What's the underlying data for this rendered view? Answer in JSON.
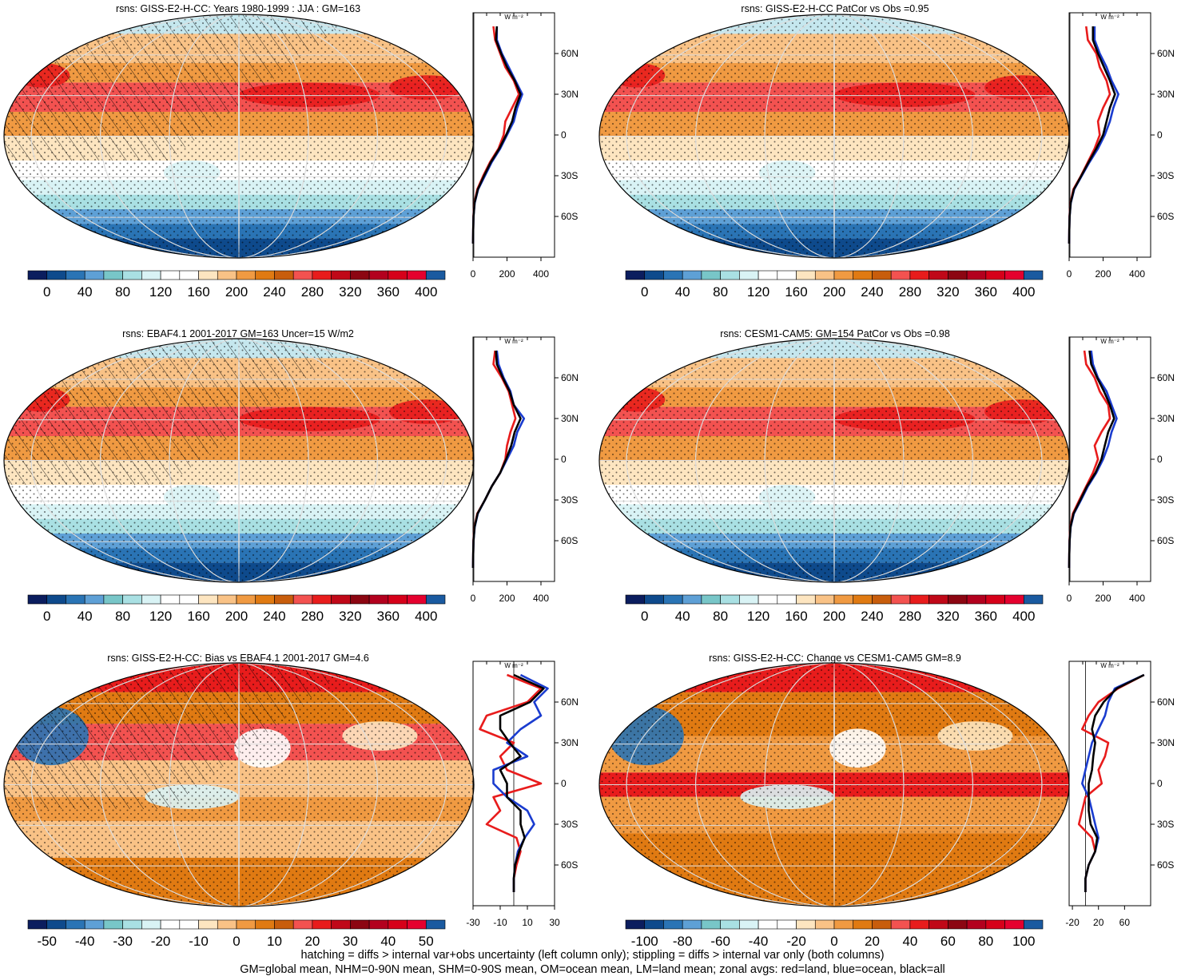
{
  "colorbar_colors": [
    "#0b1d5e",
    "#0e4a8c",
    "#2a74b5",
    "#5ea0d6",
    "#78c6c8",
    "#a9e0e3",
    "#d9f3f5",
    "#ffffff",
    "#ffffff",
    "#fde5c0",
    "#f9c286",
    "#f09a42",
    "#e07a12",
    "#c85d0c",
    "#f35250",
    "#e81c1c",
    "#c00818",
    "#8c0612",
    "#b3001e",
    "#d6001a",
    "#e5002e",
    "#1a5aa0"
  ],
  "panels": [
    {
      "id": "p1",
      "title": "rsns: GISS-E2-H-CC: Years 1980-1999 : JJA : GM=163",
      "colorbar_labels": [
        "0",
        "40",
        "80",
        "120",
        "160",
        "200",
        "240",
        "280",
        "320",
        "360",
        "400"
      ],
      "profile": {
        "xticks": [
          "0",
          "200",
          "400"
        ],
        "xrange": [
          0,
          480
        ],
        "unit": "W m⁻²",
        "lat_labels": [
          "60N",
          "30N",
          "0",
          "30S",
          "60S"
        ]
      },
      "chart_data": {
        "type": "line",
        "title": "rsns: GISS-E2-H-CC: Years 1980-1999 : JJA : GM=163",
        "lat": [
          80,
          70,
          60,
          50,
          40,
          30,
          20,
          10,
          0,
          -10,
          -20,
          -30,
          -40,
          -50,
          -60,
          -70,
          -80
        ],
        "series": [
          {
            "name": "red",
            "color": "#e81c1c",
            "values": [
              120,
              130,
              160,
              190,
              240,
              270,
              230,
              190,
              180,
              150,
              100,
              60,
              25,
              8,
              2,
              1,
              0
            ]
          },
          {
            "name": "blue",
            "color": "#1a3ccf",
            "values": [
              140,
              140,
              170,
              210,
              250,
              290,
              260,
              240,
              200,
              160,
              110,
              70,
              30,
              10,
              3,
              1,
              0
            ]
          },
          {
            "name": "black",
            "color": "#000000",
            "values": [
              140,
              135,
              165,
              200,
              245,
              280,
              250,
              230,
              195,
              155,
              105,
              65,
              28,
              9,
              3,
              1,
              0
            ]
          }
        ]
      }
    },
    {
      "id": "p2",
      "title": "rsns: GISS-E2-H-CC PatCor vs Obs =0.95",
      "colorbar_labels": [
        "0",
        "40",
        "80",
        "120",
        "160",
        "200",
        "240",
        "280",
        "320",
        "360",
        "400"
      ],
      "profile": {
        "xticks": [
          "0",
          "200",
          "400"
        ],
        "xrange": [
          0,
          480
        ],
        "unit": "W m⁻²",
        "lat_labels": [
          "60N",
          "30N",
          "0",
          "30S",
          "60S"
        ]
      },
      "chart_data": {
        "type": "line",
        "title": "rsns: GISS-E2-H-CC PatCor vs Obs =0.95",
        "lat": [
          80,
          70,
          60,
          50,
          40,
          30,
          20,
          10,
          0,
          -10,
          -20,
          -30,
          -40,
          -50,
          -60,
          -70,
          -80
        ],
        "series": [
          {
            "name": "red",
            "color": "#e81c1c",
            "values": [
              100,
              110,
              160,
              180,
              220,
              240,
              200,
              170,
              180,
              150,
              110,
              70,
              25,
              8,
              2,
              1,
              0
            ]
          },
          {
            "name": "blue",
            "color": "#1a3ccf",
            "values": [
              150,
              150,
              180,
              220,
              250,
              290,
              260,
              240,
              210,
              170,
              120,
              75,
              30,
              10,
              3,
              1,
              0
            ]
          },
          {
            "name": "black",
            "color": "#000000",
            "values": [
              140,
              140,
              170,
              205,
              240,
              270,
              240,
              220,
              200,
              160,
              115,
              72,
              28,
              9,
              3,
              1,
              0
            ]
          }
        ]
      }
    },
    {
      "id": "p3",
      "title": "rsns: EBAF4.1 2001-2017 GM=163 Uncer=15 W/m2",
      "colorbar_labels": [
        "0",
        "40",
        "80",
        "120",
        "160",
        "200",
        "240",
        "280",
        "320",
        "360",
        "400"
      ],
      "profile": {
        "xticks": [
          "0",
          "200",
          "400"
        ],
        "xrange": [
          0,
          480
        ],
        "unit": "W m⁻²",
        "lat_labels": [
          "60N",
          "30N",
          "0",
          "30S",
          "60S"
        ]
      },
      "chart_data": {
        "type": "line",
        "title": "rsns: EBAF4.1 2001-2017 GM=163 Uncer=15 W/m2",
        "lat": [
          80,
          70,
          60,
          50,
          40,
          30,
          20,
          10,
          0,
          -10,
          -20,
          -30,
          -40,
          -50,
          -60,
          -70,
          -80
        ],
        "series": [
          {
            "name": "red",
            "color": "#e81c1c",
            "values": [
              130,
              120,
              170,
              210,
              230,
              250,
              220,
              200,
              190,
              160,
              110,
              70,
              25,
              8,
              2,
              1,
              0
            ]
          },
          {
            "name": "blue",
            "color": "#1a3ccf",
            "values": [
              140,
              150,
              180,
              220,
              240,
              300,
              260,
              240,
              200,
              160,
              110,
              70,
              28,
              10,
              3,
              1,
              0
            ]
          },
          {
            "name": "black",
            "color": "#000000",
            "values": [
              135,
              140,
              175,
              215,
              240,
              280,
              245,
              225,
              195,
              160,
              110,
              70,
              27,
              9,
              3,
              1,
              0
            ]
          }
        ]
      }
    },
    {
      "id": "p4",
      "title": "rsns: CESM1-CAM5: GM=154 PatCor vs Obs =0.98",
      "colorbar_labels": [
        "0",
        "40",
        "80",
        "120",
        "160",
        "200",
        "240",
        "280",
        "320",
        "360",
        "400"
      ],
      "profile": {
        "xticks": [
          "0",
          "200",
          "400"
        ],
        "xrange": [
          0,
          480
        ],
        "unit": "W m⁻²",
        "lat_labels": [
          "60N",
          "30N",
          "0",
          "30S",
          "60S"
        ]
      },
      "chart_data": {
        "type": "line",
        "title": "rsns: CESM1-CAM5: GM=154 PatCor vs Obs =0.98",
        "lat": [
          80,
          70,
          60,
          50,
          40,
          30,
          20,
          10,
          0,
          -10,
          -20,
          -30,
          -40,
          -50,
          -60,
          -70,
          -80
        ],
        "series": [
          {
            "name": "red",
            "color": "#e81c1c",
            "values": [
              90,
              100,
              150,
              180,
              230,
              240,
              190,
              150,
              170,
              140,
              100,
              60,
              22,
              7,
              2,
              1,
              0
            ]
          },
          {
            "name": "blue",
            "color": "#1a3ccf",
            "values": [
              130,
              140,
              170,
              220,
              250,
              280,
              250,
              230,
              200,
              160,
              110,
              70,
              28,
              9,
              3,
              1,
              0
            ]
          },
          {
            "name": "black",
            "color": "#000000",
            "values": [
              120,
              130,
              165,
              205,
              240,
              265,
              230,
              210,
              190,
              155,
              105,
              66,
              26,
              8,
              3,
              1,
              0
            ]
          }
        ]
      }
    },
    {
      "id": "p5",
      "title": "rsns: GISS-E2-H-CC: Bias vs EBAF4.1 2001-2017 GM=4.6",
      "colorbar_labels": [
        "-50",
        "-40",
        "-30",
        "-20",
        "-10",
        "0",
        "10",
        "20",
        "30",
        "40",
        "50"
      ],
      "profile": {
        "xticks": [
          "-30",
          "-10",
          "10",
          "30"
        ],
        "xrange": [
          -30,
          30
        ],
        "unit": "W m⁻²",
        "lat_labels": [
          "60N",
          "30N",
          "0",
          "30S",
          "60S"
        ]
      },
      "chart_data": {
        "type": "line",
        "title": "rsns: GISS-E2-H-CC: Bias vs EBAF4.1 2001-2017 GM=4.6",
        "lat": [
          80,
          70,
          60,
          50,
          40,
          30,
          20,
          10,
          0,
          -10,
          -20,
          -30,
          -40,
          -50,
          -60,
          -70,
          -80
        ],
        "series": [
          {
            "name": "red",
            "color": "#e81c1c",
            "values": [
              -5,
              20,
              10,
              -20,
              -25,
              0,
              -10,
              -5,
              20,
              -15,
              -10,
              -20,
              2,
              5,
              2,
              0,
              0
            ]
          },
          {
            "name": "blue",
            "color": "#1a3ccf",
            "values": [
              5,
              25,
              15,
              20,
              5,
              -5,
              10,
              -15,
              -15,
              -5,
              10,
              15,
              8,
              3,
              1,
              0,
              0
            ]
          },
          {
            "name": "black",
            "color": "#000000",
            "values": [
              0,
              22,
              12,
              -10,
              -10,
              -3,
              5,
              -10,
              -5,
              -5,
              5,
              5,
              8,
              4,
              1,
              0,
              0
            ]
          }
        ]
      }
    },
    {
      "id": "p6",
      "title": "rsns: GISS-E2-H-CC: Change vs CESM1-CAM5 GM=8.9",
      "colorbar_labels": [
        "-100",
        "-80",
        "-60",
        "-40",
        "-20",
        "0",
        "20",
        "40",
        "60",
        "80",
        "100"
      ],
      "profile": {
        "xticks": [
          "-20",
          "20",
          "60"
        ],
        "xrange": [
          -25,
          100
        ],
        "unit": "W m⁻²",
        "lat_labels": [
          "60N",
          "30N",
          "0",
          "30S",
          "60S"
        ]
      },
      "chart_data": {
        "type": "line",
        "title": "rsns: GISS-E2-H-CC: Change vs CESM1-CAM5 GM=8.9",
        "lat": [
          80,
          70,
          60,
          50,
          40,
          30,
          20,
          10,
          0,
          -10,
          -20,
          -30,
          -40,
          -50,
          -60,
          -70,
          -80
        ],
        "series": [
          {
            "name": "red",
            "color": "#e81c1c",
            "values": [
              90,
              50,
              20,
              5,
              -5,
              35,
              30,
              20,
              25,
              0,
              -5,
              -10,
              10,
              15,
              5,
              0,
              0
            ]
          },
          {
            "name": "blue",
            "color": "#1a3ccf",
            "values": [
              90,
              45,
              35,
              30,
              20,
              10,
              5,
              0,
              -5,
              5,
              10,
              15,
              20,
              15,
              5,
              0,
              0
            ]
          },
          {
            "name": "black",
            "color": "#000000",
            "values": [
              90,
              48,
              28,
              15,
              10,
              15,
              12,
              10,
              5,
              5,
              5,
              8,
              18,
              15,
              5,
              0,
              0
            ]
          }
        ]
      }
    }
  ],
  "footer": {
    "line1": "hatching = diffs > internal var+obs uncertainty (left column only); stippling = diffs > internal var only (both columns)",
    "line2": "GM=global mean, NHM=0-90N mean, SHM=0-90S mean, OM=ocean mean, LM=land mean; zonal avgs: red=land, blue=ocean, black=all"
  }
}
